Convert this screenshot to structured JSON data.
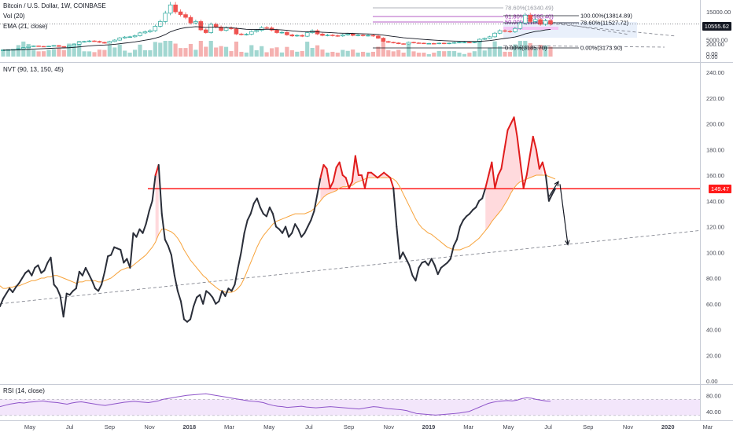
{
  "legends": {
    "price": "Bitcoin / U.S. Dollar, 1W, COINBASE",
    "volume": "Vol (20)",
    "ema": "EMA (21, close)",
    "nvt": "NVT (90, 13, 150, 45)",
    "rsi": "RSI (14, close)"
  },
  "price_tags": {
    "price": "10555.62",
    "nvt": "149.47"
  },
  "colors": {
    "candle_up": "#26a69a",
    "candle_down": "#ef5350",
    "volume_up": "#98d3cc",
    "volume_down": "#f4a9a7",
    "ema": "#131722",
    "nvt_line": "#2a2e39",
    "nvt_high": "#e01c1c",
    "nvt_signal": "#f7a33b",
    "threshold": "#ff1a1a",
    "rsi_line": "#8e54c9",
    "rsi_band": "#f3e6fb"
  },
  "chart_data": [
    {
      "type": "candlestick",
      "name": "price",
      "x_range": [
        "2017-04",
        "2020-03"
      ],
      "y_ticks": [
        15000.0,
        10000.0,
        5000.0,
        0.0
      ],
      "y_tick_labels": [
        "15000.00",
        "10000.00",
        "5000.00",
        "0.00"
      ],
      "last_price": 10555.62,
      "closes": [
        1200,
        1320,
        1450,
        1700,
        2100,
        2500,
        2700,
        2550,
        2400,
        2600,
        2850,
        2500,
        2300,
        2750,
        3300,
        4100,
        4300,
        4500,
        4350,
        4000,
        3700,
        4300,
        4800,
        5600,
        5900,
        6000,
        6400,
        7400,
        7800,
        8200,
        9800,
        11500,
        14500,
        17500,
        15000,
        14000,
        13000,
        11000,
        11500,
        8500,
        7500,
        10500,
        9500,
        8300,
        9200,
        8900,
        7000,
        6800,
        6900,
        7900,
        8300,
        9300,
        9200,
        8400,
        7500,
        7600,
        6700,
        6300,
        6500,
        6200,
        7500,
        8200,
        7000,
        6500,
        6600,
        6400,
        6300,
        6700,
        7000,
        6500,
        6600,
        6400,
        6500,
        6300,
        5500,
        4300,
        4000,
        3800,
        3500,
        3400,
        4000,
        3800,
        3700,
        3600,
        3600,
        3500,
        3700,
        3500,
        3700,
        3900,
        4000,
        4000,
        3900,
        4100,
        5100,
        5400,
        6000,
        7300,
        8200,
        8000,
        7800,
        9000,
        11000,
        13800,
        11500,
        12200,
        10500,
        11800,
        10555.62
      ]
    },
    {
      "type": "bar",
      "name": "volume",
      "y_ticks": [
        200.0,
        0.0
      ],
      "y_tick_labels": [
        "200.00",
        "0.00"
      ]
    },
    {
      "type": "line",
      "name": "fibonacci_levels",
      "levels": [
        {
          "label": "78.60%(16340.49)",
          "color": "#9598a1",
          "band": "#f0f0f4"
        },
        {
          "label": "61.80%(12595.40)",
          "color": "#9c27b0",
          "band": "#f3e8f8"
        },
        {
          "label": "50.00%(11060.81)",
          "color": "#9c27b0",
          "band": "#eaf7f0"
        },
        {
          "label": "100.00%(13814.89)",
          "color": "#131722",
          "band": "#ebecf2"
        },
        {
          "label": "78.60%(11527.72)",
          "color": "#131722",
          "band": "#ebecf2"
        },
        {
          "label": "0.00%(3185.70)",
          "color": "#131722",
          "band": ""
        },
        {
          "label": "0.00%(3173.90)",
          "color": "#131722",
          "band": ""
        }
      ]
    },
    {
      "type": "line",
      "name": "nvt",
      "y_ticks": [
        240.0,
        220.0,
        200.0,
        180.0,
        160.0,
        140.0,
        120.0,
        100.0,
        80.0,
        60.0,
        40.0,
        20.0,
        0.0
      ],
      "y_tick_labels": [
        "240.00",
        "220.00",
        "200.00",
        "180.00",
        "160.00",
        "140.00",
        "120.00",
        "100.00",
        "80.00",
        "60.00",
        "40.00",
        "20.00",
        "0.00"
      ],
      "ylim": [
        0,
        240
      ],
      "threshold": 149.47,
      "nvt": [
        58,
        64,
        68,
        72,
        69,
        73,
        76,
        80,
        84,
        86,
        82,
        88,
        90,
        84,
        86,
        92,
        96,
        75,
        72,
        66,
        50,
        68,
        67,
        70,
        72,
        85,
        82,
        88,
        83,
        78,
        72,
        70,
        75,
        85,
        97,
        98,
        104,
        103,
        102,
        92,
        95,
        88,
        115,
        112,
        118,
        115,
        122,
        132,
        140,
        160,
        168,
        130,
        110,
        105,
        98,
        82,
        70,
        62,
        48,
        46,
        48,
        58,
        65,
        67,
        60,
        70,
        68,
        65,
        60,
        62,
        70,
        66,
        72,
        70,
        75,
        88,
        100,
        115,
        125,
        130,
        138,
        142,
        135,
        130,
        128,
        135,
        130,
        120,
        118,
        115,
        120,
        112,
        115,
        122,
        118,
        112,
        115,
        120,
        125,
        132,
        145,
        158,
        168,
        165,
        150,
        155,
        166,
        170,
        160,
        158,
        150,
        155,
        175,
        160,
        160,
        150,
        162,
        162,
        160,
        158,
        160,
        162,
        160,
        158,
        150,
        120,
        95,
        100,
        95,
        90,
        82,
        78,
        88,
        92,
        93,
        90,
        95,
        90,
        83,
        88,
        90,
        92,
        95,
        105,
        110,
        120,
        125,
        128,
        130,
        133,
        135,
        140,
        142,
        150,
        160,
        170,
        150,
        160,
        165,
        180,
        195,
        200,
        205,
        190,
        170,
        150,
        160,
        175,
        190,
        180,
        165,
        170,
        160,
        140,
        145,
        149.47
      ],
      "signal": [
        74,
        72,
        72,
        73,
        73,
        74,
        74,
        75,
        76,
        77,
        78,
        78,
        79,
        80,
        80,
        81,
        81,
        82,
        82,
        81,
        80,
        79,
        78,
        77,
        76,
        77,
        77,
        78,
        78,
        78,
        78,
        77,
        77,
        78,
        79,
        80,
        82,
        84,
        86,
        87,
        88,
        88,
        90,
        92,
        94,
        96,
        98,
        101,
        104,
        108,
        114,
        118,
        118,
        117,
        116,
        114,
        111,
        107,
        102,
        98,
        94,
        91,
        88,
        85,
        82,
        80,
        77,
        75,
        73,
        71,
        70,
        69,
        69,
        69,
        70,
        72,
        75,
        80,
        86,
        92,
        98,
        104,
        109,
        113,
        116,
        119,
        122,
        124,
        125,
        126,
        127,
        128,
        129,
        130,
        130,
        130,
        130,
        131,
        132,
        134,
        137,
        140,
        143,
        145,
        146,
        147,
        148,
        150,
        151,
        151,
        152,
        152,
        154,
        155,
        156,
        157,
        158,
        158,
        158,
        158,
        158,
        158,
        158,
        158,
        157,
        155,
        151,
        146,
        141,
        136,
        131,
        126,
        122,
        119,
        117,
        115,
        114,
        112,
        110,
        108,
        106,
        104,
        103,
        102,
        102,
        102,
        103,
        104,
        105,
        107,
        109,
        111,
        114,
        117,
        120,
        124,
        127,
        130,
        133,
        137,
        141,
        146,
        150,
        153,
        155,
        156,
        157,
        158,
        159,
        160,
        160,
        160,
        160,
        159,
        158,
        157
      ]
    },
    {
      "type": "line",
      "name": "rsi",
      "y_ticks": [
        80.0,
        40.0
      ],
      "y_tick_labels": [
        "80.00",
        "40.00"
      ],
      "ylim": [
        20,
        100
      ],
      "band": [
        30,
        70
      ],
      "rsi": [
        52,
        55,
        58,
        60,
        62,
        61,
        63,
        64,
        65,
        66,
        64,
        63,
        62,
        60,
        58,
        61,
        63,
        64,
        62,
        60,
        58,
        56,
        55,
        57,
        59,
        61,
        63,
        64,
        65,
        64,
        63,
        62,
        64,
        66,
        70,
        72,
        74,
        76,
        78,
        80,
        81,
        82,
        83,
        84,
        82,
        80,
        78,
        76,
        74,
        72,
        70,
        68,
        66,
        65,
        64,
        62,
        58,
        55,
        53,
        52,
        50,
        51,
        52,
        53,
        51,
        50,
        49,
        50,
        51,
        52,
        51,
        50,
        49,
        48,
        47,
        46,
        48,
        50,
        52,
        51,
        49,
        47,
        46,
        45,
        44,
        42,
        38,
        35,
        34,
        33,
        32,
        31,
        32,
        33,
        34,
        35,
        36,
        38,
        40,
        45,
        50,
        55,
        60,
        63,
        65,
        66,
        67,
        66,
        68,
        72,
        74,
        73,
        70,
        68,
        66,
        65
      ]
    },
    {
      "type": "line",
      "name": "time_axis",
      "x_tick_labels": [
        "May",
        "Jul",
        "Sep",
        "Nov",
        "2018",
        "Mar",
        "May",
        "Jul",
        "Sep",
        "Nov",
        "2019",
        "Mar",
        "May",
        "Jul",
        "Sep",
        "Nov",
        "2020",
        "Mar"
      ],
      "x_range": [
        "2017-04",
        "2020-03"
      ]
    }
  ]
}
